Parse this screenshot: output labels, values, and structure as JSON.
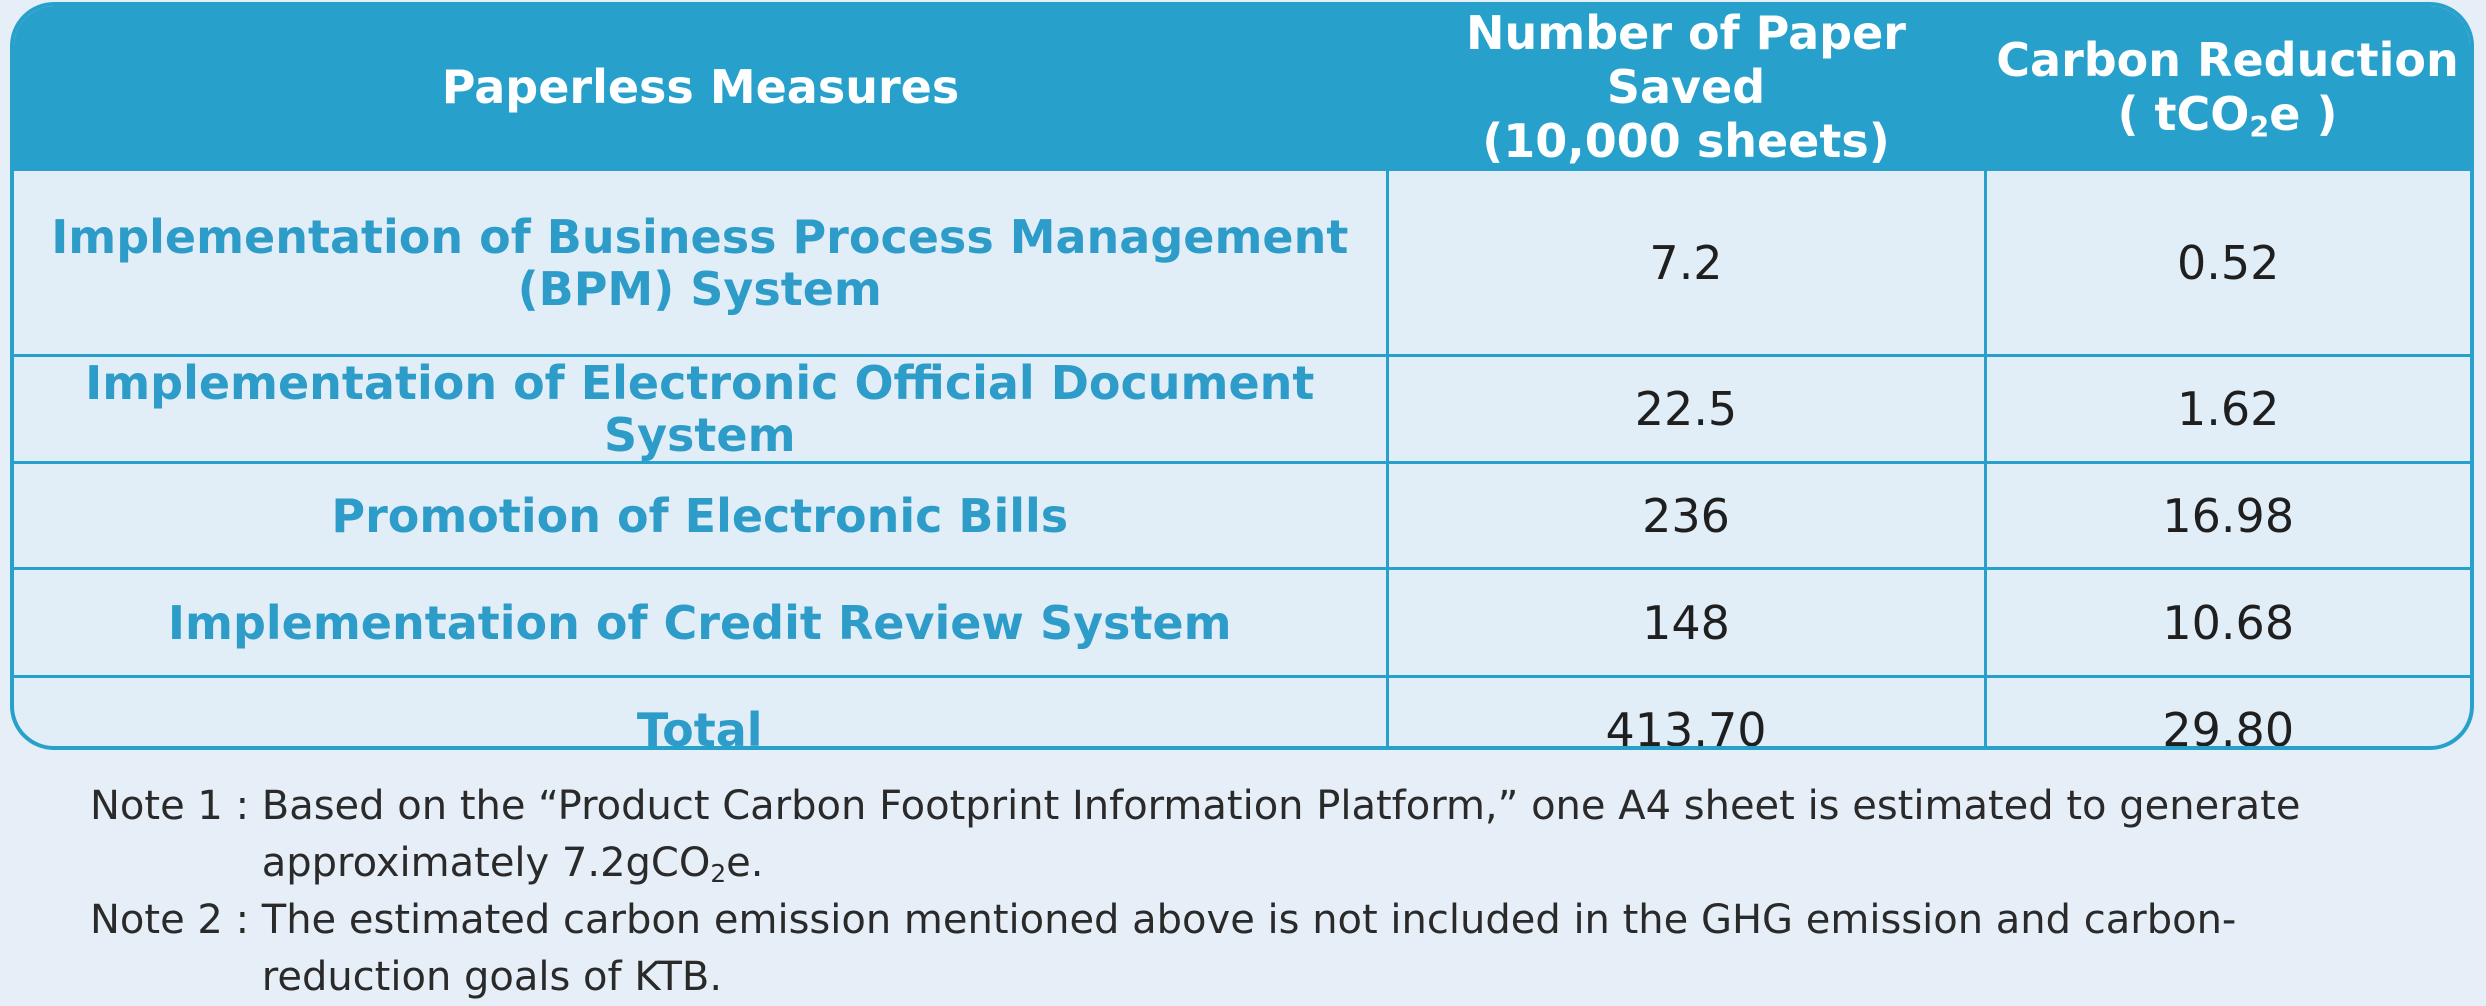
{
  "table": {
    "headers": {
      "measures": "Paperless Measures",
      "paper_line1": "Number of Paper Saved",
      "paper_line2": "(10,000 sheets)",
      "carbon_line1": "Carbon Reduction",
      "carbon_pre": "( tCO",
      "carbon_sub": "2",
      "carbon_post": "e )"
    },
    "rows": [
      {
        "measure": "Implementation of Business Process Management (BPM) System",
        "paper": "7.2",
        "carbon": "0.52"
      },
      {
        "measure": "Implementation of Electronic Official Document System",
        "paper": "22.5",
        "carbon": "1.62"
      },
      {
        "measure": "Promotion of Electronic Bills",
        "paper": "236",
        "carbon": "16.98"
      },
      {
        "measure": "Implementation of Credit Review System",
        "paper": "148",
        "carbon": "10.68"
      },
      {
        "measure": "Total",
        "paper": "413.70",
        "carbon": "29.80"
      }
    ]
  },
  "notes": [
    {
      "label": "Note 1 : ",
      "text_pre": "Based on the “Product Carbon Footprint Information Platform,” one A4 sheet is estimated to generate approximately 7.2gCO",
      "text_sub": "2",
      "text_post": "e."
    },
    {
      "label": "Note 2 : ",
      "text_pre": "The estimated carbon emission mentioned above is not included in the GHG emission and carbon-reduction goals of KTB.",
      "text_sub": "",
      "text_post": ""
    }
  ]
}
